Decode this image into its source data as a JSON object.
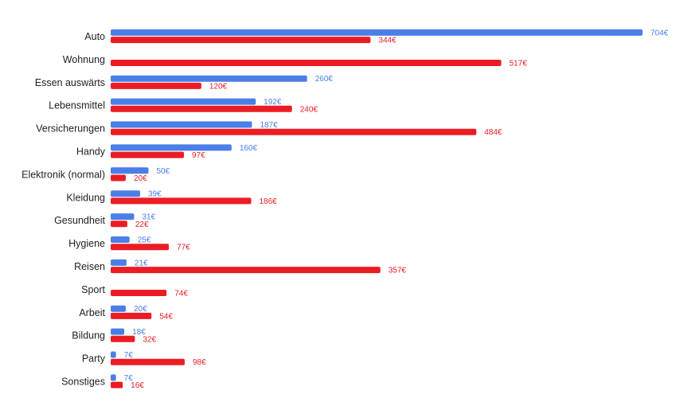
{
  "chart_data": {
    "type": "bar",
    "orientation": "horizontal",
    "grid": false,
    "legend": "none",
    "categories": [
      "Auto",
      "Wohnung",
      "Essen auswärts",
      "Lebensmittel",
      "Versicherungen",
      "Handy",
      "Elektronik (normal)",
      "Kleidung",
      "Gesundheit",
      "Hygiene",
      "Reisen",
      "Sport",
      "Arbeit",
      "Bildung",
      "Party",
      "Sonstiges"
    ],
    "value_suffix": "€",
    "series": [
      {
        "color": "#4a7fe8",
        "values": [
          704,
          null,
          260,
          192,
          187,
          160,
          50,
          39,
          31,
          25,
          21,
          null,
          20,
          18,
          7,
          7
        ]
      },
      {
        "color": "#ec1c24",
        "values": [
          344,
          517,
          120,
          240,
          484,
          97,
          20,
          186,
          22,
          77,
          357,
          74,
          54,
          32,
          98,
          16
        ]
      }
    ],
    "xlim": [
      0,
      704
    ]
  }
}
